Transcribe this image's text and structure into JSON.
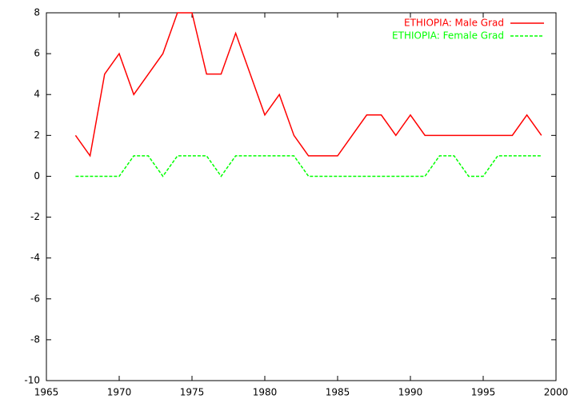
{
  "chart_data": {
    "type": "line",
    "x": [
      1967,
      1968,
      1969,
      1970,
      1971,
      1972,
      1973,
      1974,
      1975,
      1976,
      1977,
      1978,
      1979,
      1980,
      1981,
      1982,
      1983,
      1984,
      1985,
      1986,
      1987,
      1988,
      1989,
      1990,
      1991,
      1992,
      1993,
      1994,
      1995,
      1996,
      1997,
      1998,
      1999
    ],
    "series": [
      {
        "name": "ETHIOPIA: Male Grad",
        "color": "#ff0000",
        "dash": "solid",
        "values": [
          2,
          1,
          5,
          6,
          4,
          5,
          6,
          8,
          8,
          5,
          5,
          7,
          5,
          3,
          4,
          2,
          1,
          1,
          1,
          2,
          3,
          3,
          2,
          3,
          2,
          2,
          2,
          2,
          2,
          2,
          2,
          3,
          2
        ]
      },
      {
        "name": "ETHIOPIA: Female Grad",
        "color": "#00ff00",
        "dash": "dashed",
        "values": [
          0,
          0,
          0,
          0,
          1,
          1,
          0,
          1,
          1,
          1,
          0,
          1,
          1,
          1,
          1,
          1,
          0,
          0,
          0,
          0,
          0,
          0,
          0,
          0,
          0,
          1,
          1,
          0,
          0,
          1,
          1,
          1,
          1
        ]
      }
    ],
    "xlim": [
      1965,
      2000
    ],
    "xticks": [
      1965,
      1970,
      1975,
      1980,
      1985,
      1990,
      1995,
      2000
    ],
    "ylim": [
      -10,
      8
    ],
    "yticks": [
      -10,
      -8,
      -6,
      -4,
      -2,
      0,
      2,
      4,
      6,
      8
    ],
    "legend": "top-right"
  }
}
